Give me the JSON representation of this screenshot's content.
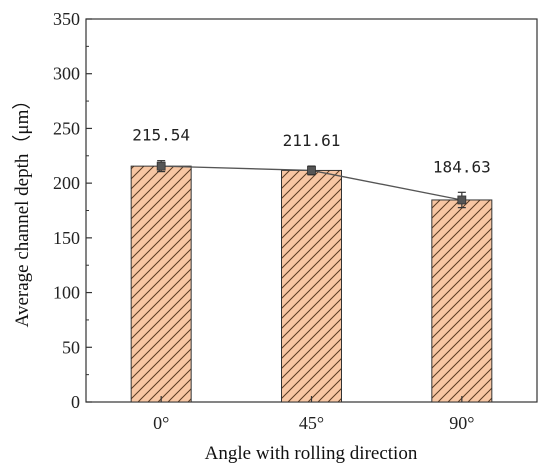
{
  "chart_data": {
    "type": "bar",
    "title": "",
    "xlabel": "Angle with rolling direction",
    "ylabel": "Average channel depth（μm）",
    "ylim": [
      0,
      350
    ],
    "yticks": [
      0,
      50,
      100,
      150,
      200,
      250,
      300,
      350
    ],
    "categories": [
      "0°",
      "45°",
      "90°"
    ],
    "values": [
      215.54,
      211.61,
      184.63
    ],
    "error": [
      5,
      4,
      7
    ],
    "data_labels": [
      "215.54",
      "211.61",
      "184.63"
    ],
    "bar_color": "#f7c6a3",
    "bar_edge_color": "#444444",
    "hatch": "diagonal",
    "overlay_line": true,
    "line_color": "#555555",
    "marker": "square",
    "grid": false,
    "legend": "none"
  }
}
